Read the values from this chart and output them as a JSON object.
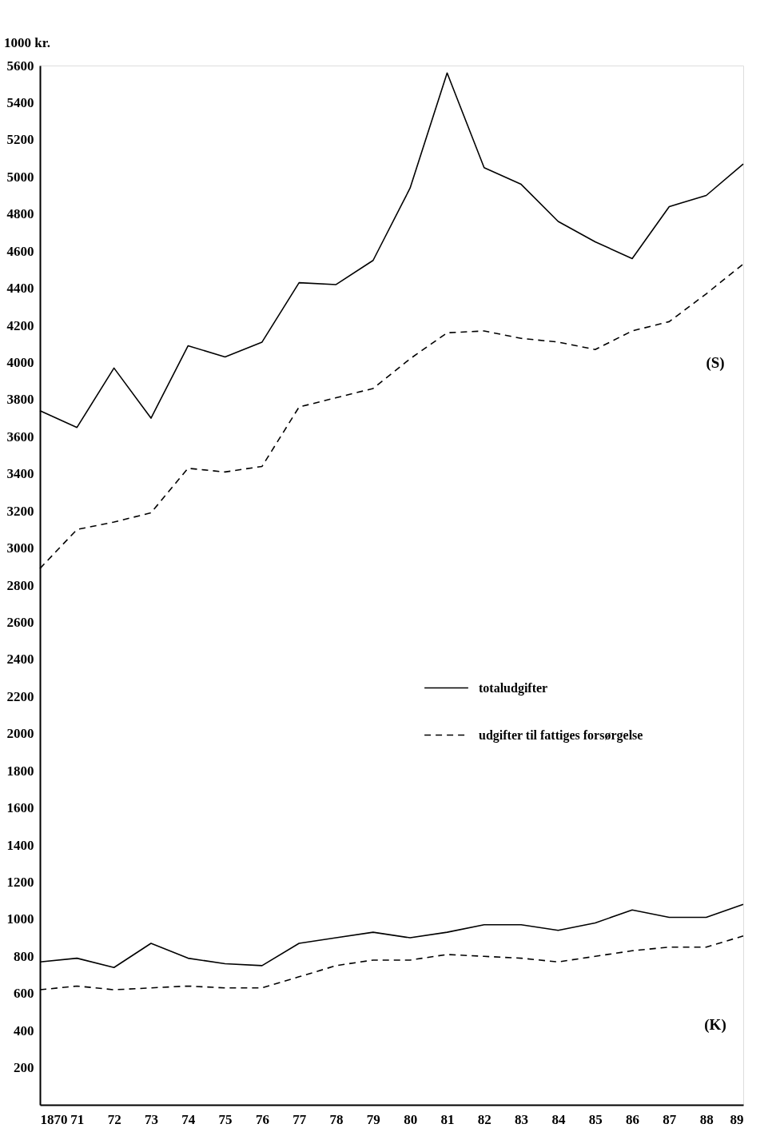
{
  "chart_data": {
    "type": "line",
    "ylabel": "1000 kr.",
    "x": [
      1870,
      1871,
      1872,
      1873,
      1874,
      1875,
      1876,
      1877,
      1878,
      1879,
      1880,
      1881,
      1882,
      1883,
      1884,
      1885,
      1886,
      1887,
      1888,
      1889
    ],
    "xlim": [
      1870,
      1889
    ],
    "xticks": [
      1870,
      {
        "value": 1871,
        "label": "71"
      },
      {
        "value": 1872,
        "label": "72"
      },
      {
        "value": 1873,
        "label": "73"
      },
      {
        "value": 1874,
        "label": "74"
      },
      {
        "value": 1875,
        "label": "75"
      },
      {
        "value": 1876,
        "label": "76"
      },
      {
        "value": 1877,
        "label": "77"
      },
      {
        "value": 1878,
        "label": "78"
      },
      {
        "value": 1879,
        "label": "79"
      },
      {
        "value": 1880,
        "label": "80"
      },
      {
        "value": 1881,
        "label": "81"
      },
      {
        "value": 1882,
        "label": "82"
      },
      {
        "value": 1883,
        "label": "83"
      },
      {
        "value": 1884,
        "label": "84"
      },
      {
        "value": 1885,
        "label": "85"
      },
      {
        "value": 1886,
        "label": "86"
      },
      {
        "value": 1887,
        "label": "87"
      },
      {
        "value": 1888,
        "label": "88"
      },
      {
        "value": 1889,
        "label": "89"
      }
    ],
    "ylim": [
      0,
      5600
    ],
    "yticks": [
      200,
      400,
      600,
      800,
      1000,
      1200,
      1400,
      1600,
      1800,
      2000,
      2200,
      2400,
      2600,
      2800,
      3000,
      3200,
      3400,
      3600,
      3800,
      4000,
      4200,
      4400,
      4600,
      4800,
      5000,
      5200,
      5400,
      5600
    ],
    "series": [
      {
        "name": "totaludgifter",
        "color": "#000000",
        "line_style": "solid",
        "values": [
          3740,
          3650,
          3970,
          3700,
          4090,
          4030,
          4110,
          4430,
          4420,
          4550,
          4940,
          5560,
          5050,
          4960,
          4760,
          4650,
          4560,
          4840,
          4900,
          5070
        ]
      },
      {
        "name": "udgifter til fattiges forsørgelse",
        "color": "#000000",
        "line_style": "dashed",
        "values": [
          2890,
          3100,
          3140,
          3190,
          3430,
          3410,
          3440,
          3760,
          3810,
          3860,
          4020,
          4160,
          4170,
          4130,
          4110,
          4070,
          4170,
          4220,
          4370,
          4530
        ]
      },
      {
        "color": "#000000",
        "line_style": "solid",
        "values": [
          770,
          790,
          740,
          870,
          790,
          760,
          750,
          870,
          900,
          930,
          900,
          930,
          970,
          970,
          940,
          980,
          1050,
          1010,
          1010,
          1080
        ]
      },
      {
        "color": "#000000",
        "line_style": "dashed",
        "values": [
          620,
          640,
          620,
          630,
          640,
          630,
          630,
          690,
          750,
          780,
          780,
          810,
          800,
          790,
          770,
          800,
          830,
          850,
          850,
          910
        ]
      }
    ],
    "annotations": [
      "(S)",
      "(K)"
    ],
    "grid": false,
    "legend": "right",
    "marker": "none"
  }
}
